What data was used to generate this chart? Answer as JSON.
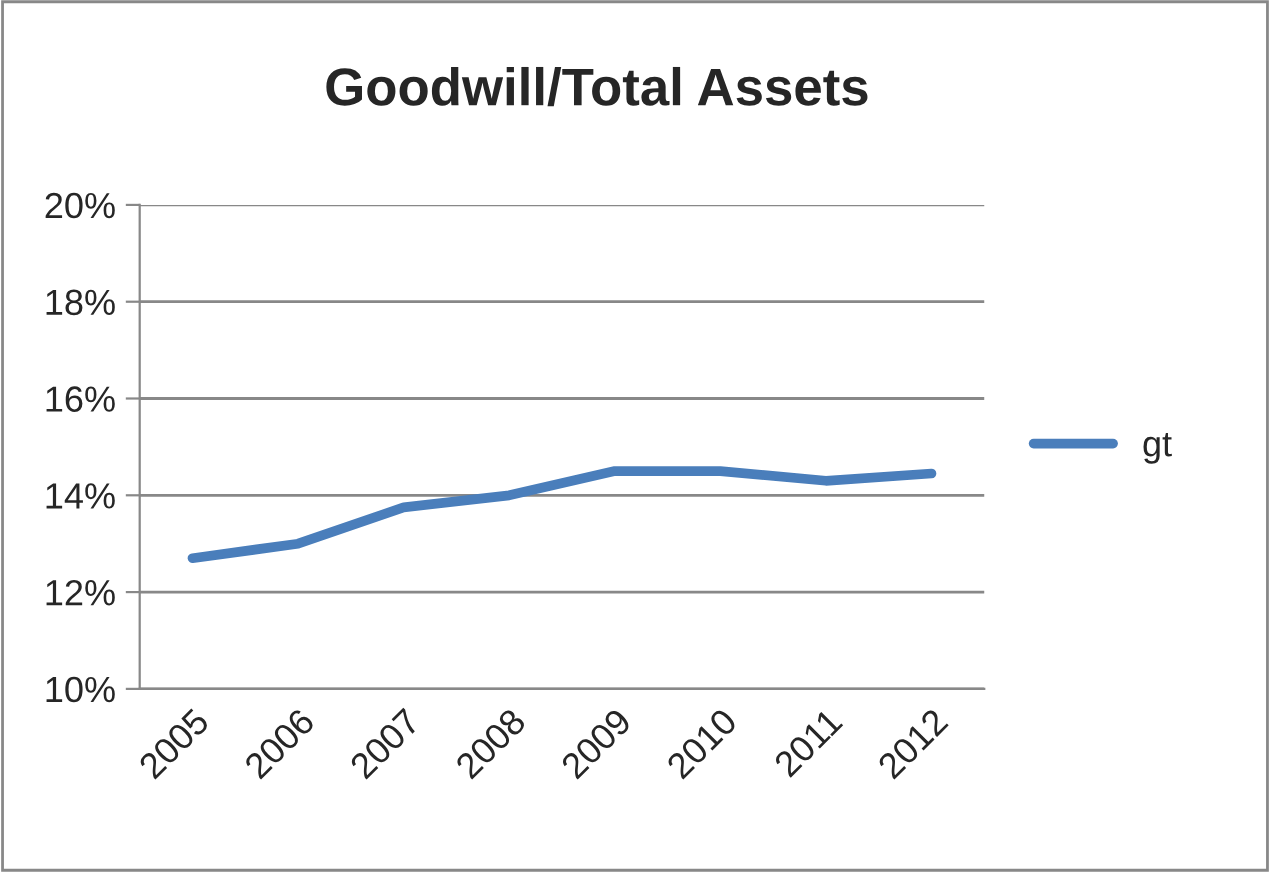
{
  "chart_data": {
    "type": "line",
    "title": "Goodwill/Total Assets",
    "categories": [
      "2005",
      "2006",
      "2007",
      "2008",
      "2009",
      "2010",
      "2011",
      "2012"
    ],
    "series": [
      {
        "name": "gt",
        "color": "#4a7ebb",
        "values": [
          12.7,
          13.0,
          13.75,
          14.0,
          14.5,
          14.5,
          14.3,
          14.45
        ]
      }
    ],
    "ylim": [
      10,
      20
    ],
    "yticks": [
      {
        "value": 10,
        "label": "10%"
      },
      {
        "value": 12,
        "label": "12%"
      },
      {
        "value": 14,
        "label": "14%"
      },
      {
        "value": 16,
        "label": "16%"
      },
      {
        "value": 18,
        "label": "18%"
      },
      {
        "value": 20,
        "label": "20%"
      }
    ],
    "grid": "y",
    "legend": "right",
    "marker": "none",
    "line_style": "solid"
  }
}
